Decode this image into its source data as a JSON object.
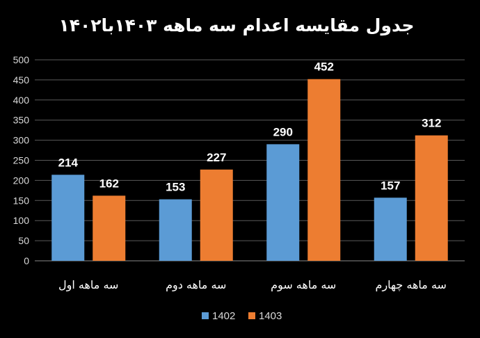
{
  "chart_data": {
    "type": "bar",
    "title": "جدول مقایسه اعدام سه ماهه ۱۴۰۳با۱۴۰۲",
    "categories": [
      "سه ماهه اول",
      "سه ماهه دوم",
      "سه ماهه سوم",
      "سه ماهه چهارم"
    ],
    "series": [
      {
        "name": "1402",
        "values": [
          214,
          153,
          290,
          157
        ],
        "color": "#5b9bd5"
      },
      {
        "name": "1403",
        "values": [
          162,
          227,
          452,
          312
        ],
        "color": "#ed7d31"
      }
    ],
    "xlabel": "",
    "ylabel": "",
    "ylim": [
      0,
      500
    ],
    "yticks": [
      0,
      50,
      100,
      150,
      200,
      250,
      300,
      350,
      400,
      450,
      500
    ],
    "grid": true,
    "legend_position": "bottom",
    "data_labels": true
  }
}
